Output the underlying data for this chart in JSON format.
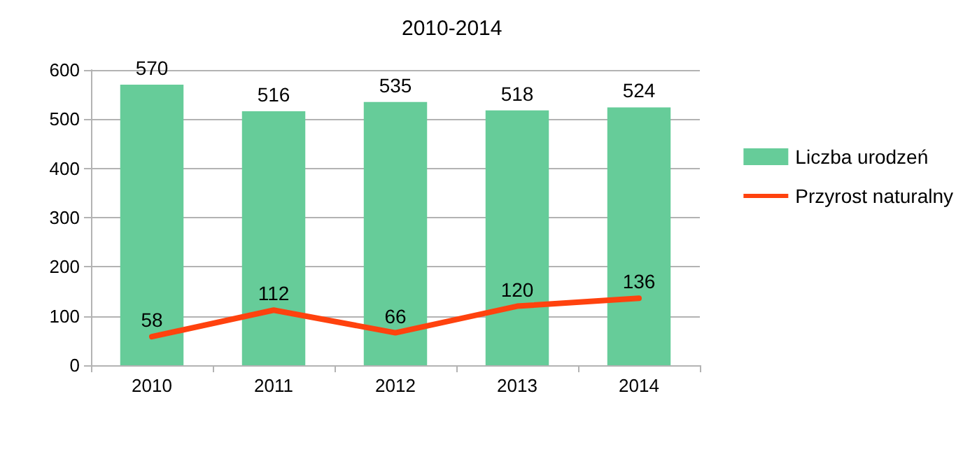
{
  "chart_data": {
    "type": "bar",
    "title": "2010-2014",
    "categories": [
      "2010",
      "2011",
      "2012",
      "2013",
      "2014"
    ],
    "series": [
      {
        "name": "Liczba urodzeń",
        "color": "#66cc99",
        "values": [
          570,
          516,
          535,
          518,
          524
        ]
      },
      {
        "name": "Przyrost naturalny",
        "type": "line",
        "color": "#ff420e",
        "values": [
          58,
          112,
          66,
          120,
          136
        ]
      }
    ],
    "ylim": [
      0,
      600
    ],
    "yticks": [
      0,
      100,
      200,
      300,
      400,
      500,
      600
    ],
    "grid": "y",
    "legend": "right",
    "data_labels": true,
    "marker": "none",
    "line_style": "solid"
  }
}
